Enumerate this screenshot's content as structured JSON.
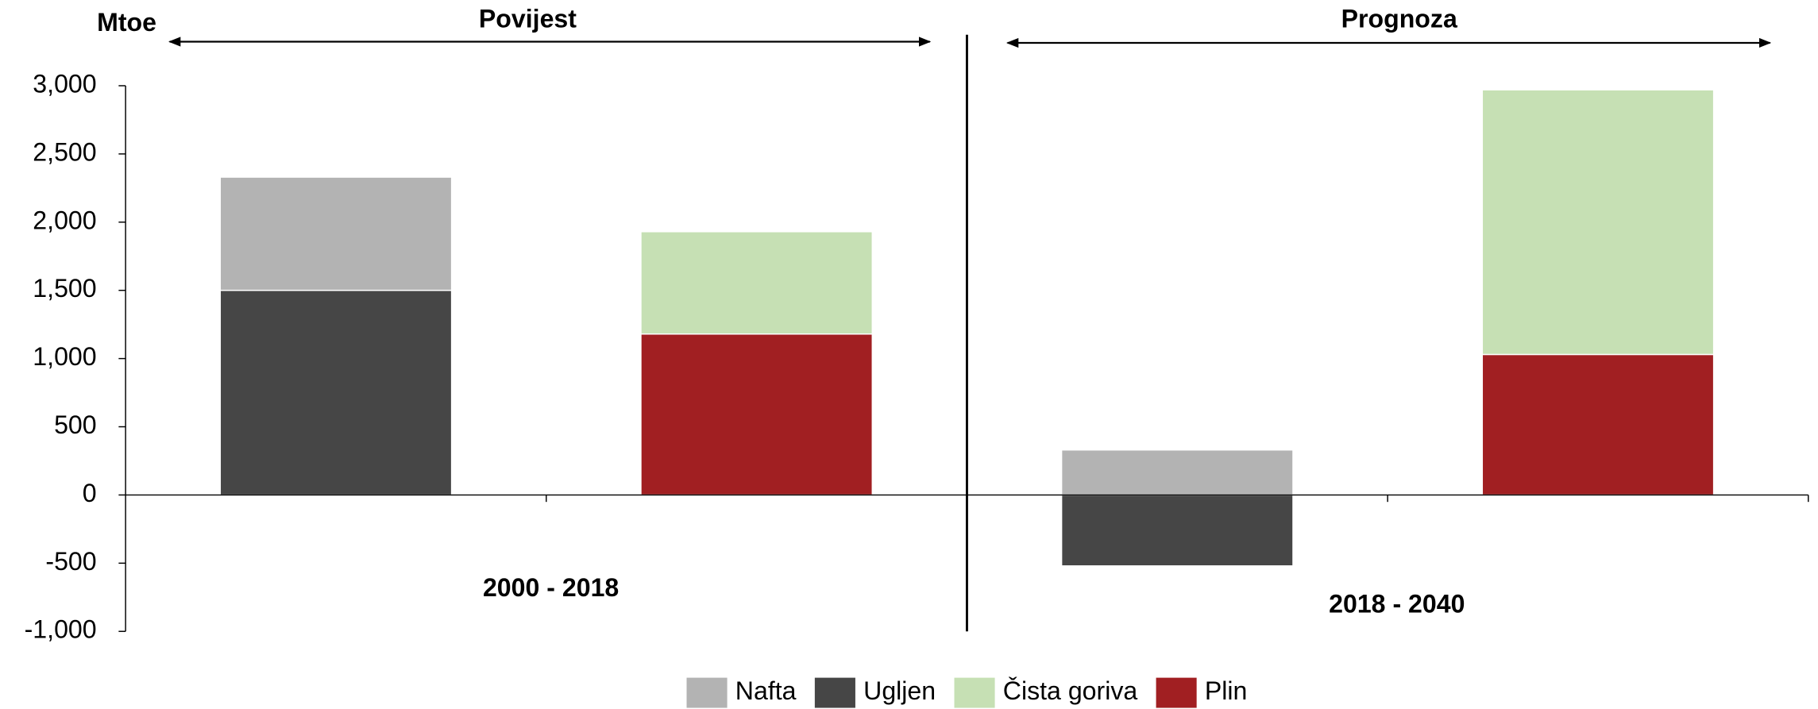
{
  "chart_data": {
    "type": "bar",
    "stacked": true,
    "y_label": "Mtoe",
    "sections": [
      "Povijest",
      "Prognoza"
    ],
    "group_labels": [
      "2000 - 2018",
      "2018 - 2040"
    ],
    "categories": [
      null,
      null,
      null,
      null
    ],
    "series": [
      {
        "name": "Nafta",
        "color": "#b3b3b3",
        "values": [
          830,
          null,
          330,
          null
        ]
      },
      {
        "name": "Ugljen",
        "color": "#464646",
        "values": [
          1500,
          null,
          -520,
          null
        ]
      },
      {
        "name": "Čista goriva",
        "color": "#c6e0b4",
        "values": [
          null,
          750,
          null,
          1940
        ]
      },
      {
        "name": "Plin",
        "color": "#a11f22",
        "values": [
          null,
          1180,
          null,
          1030
        ]
      }
    ],
    "ylim": [
      -1000,
      3000
    ],
    "yticks": [
      {
        "value": -1000,
        "label": "-1,000"
      },
      -500,
      0,
      500,
      {
        "value": 1000,
        "label": "1,000"
      },
      {
        "value": 1500,
        "label": "1,500"
      },
      {
        "value": 2000,
        "label": "2,000"
      },
      {
        "value": 2500,
        "label": "2,500"
      },
      {
        "value": 3000,
        "label": "3,000"
      }
    ],
    "legend": "bottom"
  }
}
